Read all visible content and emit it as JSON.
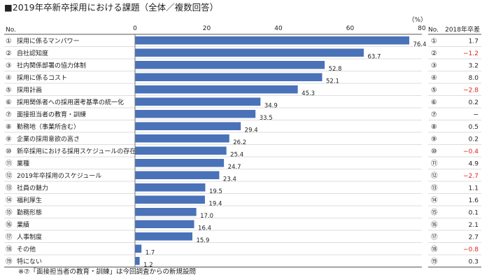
{
  "chart_data": {
    "type": "bar",
    "orientation": "horizontal",
    "title": "■2019年卒新卒採用における課題（全体／複数回答）",
    "unit": "（%）",
    "left_header": "No.",
    "right_header_no": "No.",
    "right_header_diff": "2018年卒差",
    "xlim": [
      0,
      80
    ],
    "xticks": [
      "0",
      "20",
      "40",
      "60",
      "80"
    ],
    "bar_color": "#4a72b8",
    "negative_color": "#e02020",
    "footnote": "※⑦「面接担当者の教育・訓練」は今回調査からの新規設問",
    "rows": [
      {
        "no": "①",
        "label": "採用に係るマンパワー",
        "value": 76.4,
        "value_label": "76.4",
        "diff": "1.7"
      },
      {
        "no": "②",
        "label": "自社認知度",
        "value": 63.7,
        "value_label": "63.7",
        "diff": "−1.2"
      },
      {
        "no": "③",
        "label": "社内関係部署の協力体制",
        "value": 52.8,
        "value_label": "52.8",
        "diff": "3.2"
      },
      {
        "no": "④",
        "label": "採用に係るコスト",
        "value": 52.1,
        "value_label": "52.1",
        "diff": "8.0"
      },
      {
        "no": "⑤",
        "label": "採用計画",
        "value": 45.3,
        "value_label": "45.3",
        "diff": "−2.8"
      },
      {
        "no": "⑥",
        "label": "採用関係者への採用選考基準の統一化",
        "value": 34.9,
        "value_label": "34.9",
        "diff": "0.2"
      },
      {
        "no": "⑦",
        "label": "面接担当者の教育・訓練",
        "value": 33.5,
        "value_label": "33.5",
        "diff": "−"
      },
      {
        "no": "⑧",
        "label": "勤務地（事業所含む）",
        "value": 29.4,
        "value_label": "29.4",
        "diff": "0.5"
      },
      {
        "no": "⑨",
        "label": "企業の採用意欲の高さ",
        "value": 26.2,
        "value_label": "26.2",
        "diff": "0.2"
      },
      {
        "no": "⑩",
        "label": "新卒採用における採用スケジュールの存在",
        "value": 25.4,
        "value_label": "25.4",
        "diff": "−0.4"
      },
      {
        "no": "⑪",
        "label": "業種",
        "value": 24.7,
        "value_label": "24.7",
        "diff": "4.9"
      },
      {
        "no": "⑫",
        "label": "2019年卒採用のスケジュール",
        "value": 23.4,
        "value_label": "23.4",
        "diff": "−2.7"
      },
      {
        "no": "⑬",
        "label": "社員の魅力",
        "value": 19.5,
        "value_label": "19.5",
        "diff": "1.1"
      },
      {
        "no": "⑭",
        "label": "福利厚生",
        "value": 19.4,
        "value_label": "19.4",
        "diff": "1.6"
      },
      {
        "no": "⑮",
        "label": "勤務形態",
        "value": 17.0,
        "value_label": "17.0",
        "diff": "0.1"
      },
      {
        "no": "⑯",
        "label": "業績",
        "value": 16.4,
        "value_label": "16.4",
        "diff": "2.1"
      },
      {
        "no": "⑰",
        "label": "人事制度",
        "value": 15.9,
        "value_label": "15.9",
        "diff": "2.7"
      },
      {
        "no": "⑱",
        "label": "その他",
        "value": 1.7,
        "value_label": "1.7",
        "diff": "−0.8"
      },
      {
        "no": "⑲",
        "label": "特にない",
        "value": 1.2,
        "value_label": "1.2",
        "diff": "0.3"
      }
    ]
  }
}
